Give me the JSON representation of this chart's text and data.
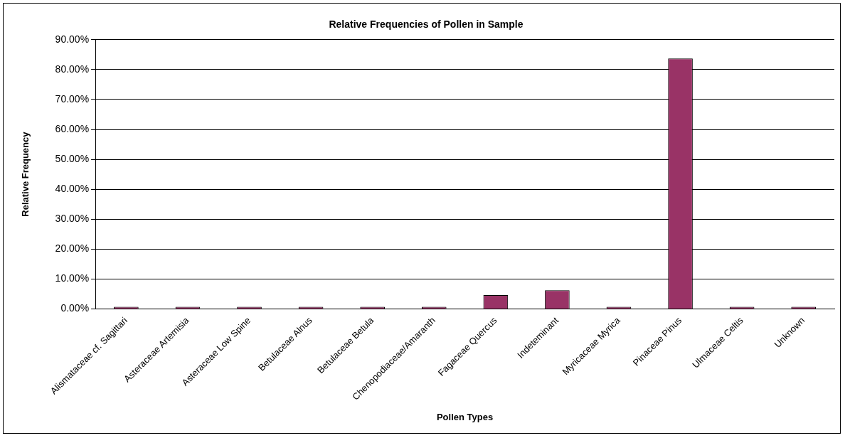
{
  "chart_data": {
    "type": "bar",
    "title": "Relative Frequencies of Pollen in Sample",
    "xlabel": "Pollen Types",
    "ylabel": "Relative Frequency",
    "categories": [
      "Alismataceae cf. Sagittari",
      "Asteraceae Artemisia",
      "Asteraceae Low Spine",
      "Betulaceae Alnus",
      "Betulaceae Betula",
      "Chenopodiaceae/Amaranth",
      "Fagaceae Quercus",
      "Indeteminant",
      "Myricaceae Myrica",
      "Pinaceae Pinus",
      "Ulmaceae Celtis",
      "Unknown"
    ],
    "values": [
      0.7,
      0.7,
      0.7,
      0.7,
      0.7,
      0.7,
      4.6,
      6.2,
      0.7,
      83.7,
      0.7,
      0.7
    ],
    "color": "#993366",
    "ylim": [
      0,
      90
    ],
    "yticks": [
      {
        "value": 0,
        "label": "0.00%"
      },
      {
        "value": 10,
        "label": "10.00%"
      },
      {
        "value": 20,
        "label": "20.00%"
      },
      {
        "value": 30,
        "label": "30.00%"
      },
      {
        "value": 40,
        "label": "40.00%"
      },
      {
        "value": 50,
        "label": "50.00%"
      },
      {
        "value": 60,
        "label": "60.00%"
      },
      {
        "value": 70,
        "label": "70.00%"
      },
      {
        "value": 80,
        "label": "80.00%"
      },
      {
        "value": 90,
        "label": "90.00%"
      }
    ],
    "grid": "y",
    "legend": false
  }
}
